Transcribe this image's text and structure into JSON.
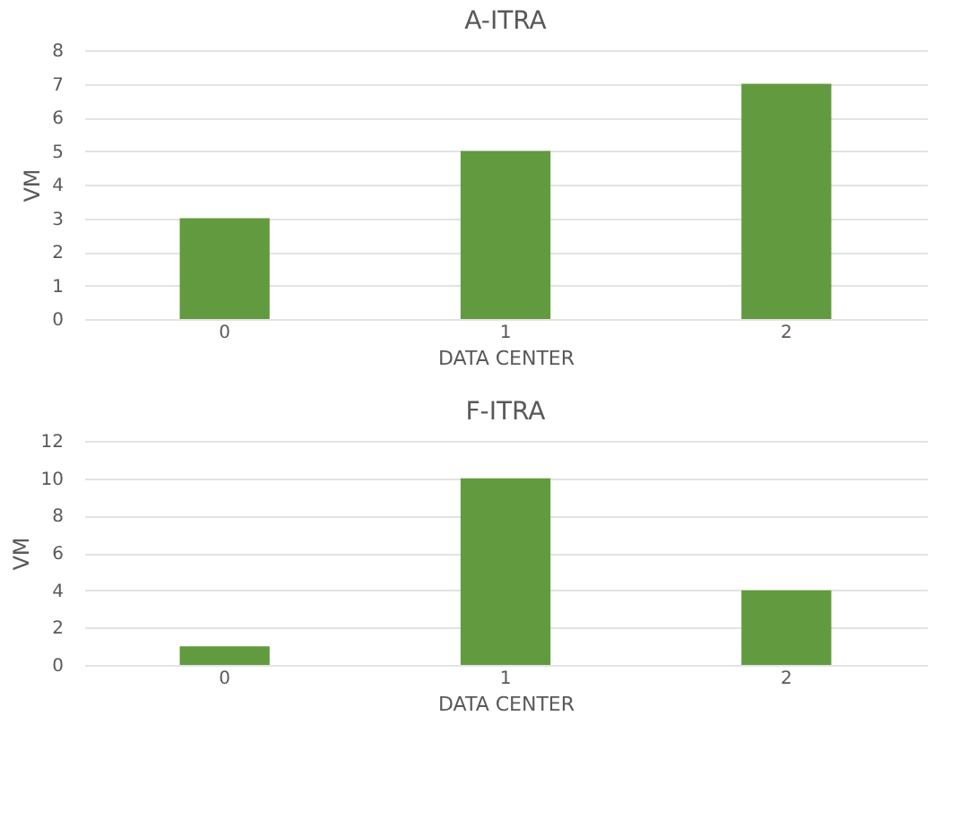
{
  "chart_data": [
    {
      "type": "bar",
      "title": "A-ITRA",
      "xlabel": "DATA CENTER",
      "ylabel": "VM",
      "categories": [
        "0",
        "1",
        "2"
      ],
      "values": [
        3,
        5,
        7
      ],
      "color": "#629a3f",
      "ylim": [
        0,
        8
      ],
      "yticks": [
        0,
        1,
        2,
        3,
        4,
        5,
        6,
        7,
        8
      ],
      "grid": "y"
    },
    {
      "type": "bar",
      "title": "F-ITRA",
      "xlabel": "DATA CENTER",
      "ylabel": "VM",
      "categories": [
        "0",
        "1",
        "2"
      ],
      "values": [
        1,
        10,
        4
      ],
      "color": "#629a3f",
      "ylim": [
        0,
        12
      ],
      "yticks": [
        0,
        2,
        4,
        6,
        8,
        10,
        12
      ],
      "grid": "y"
    }
  ]
}
